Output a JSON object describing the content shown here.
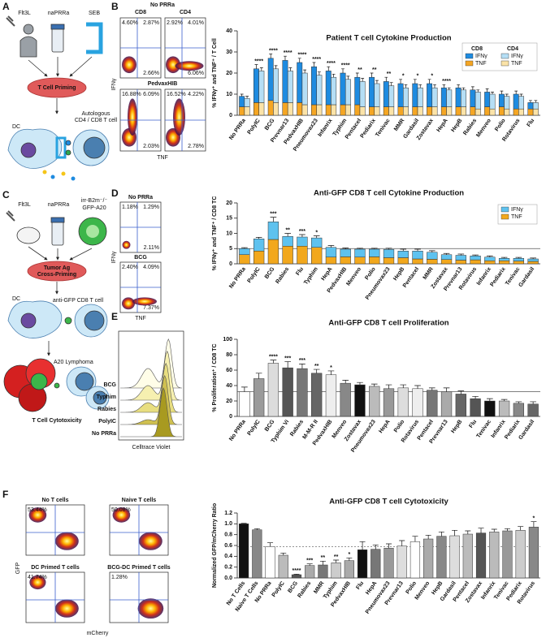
{
  "figure": {
    "panel_labels": [
      "A",
      "B",
      "C",
      "D",
      "E",
      "F"
    ],
    "schematic_a": [
      "Flt3L",
      "naPRRa",
      "SEB",
      "T Cell Priming",
      "Autologous",
      "CD4 / CD8 T cell",
      "DC"
    ],
    "schematic_c": [
      "Flt3L",
      "naPRRa",
      "irr-B2m⁻/⁻",
      "GFP-A20",
      "Tumor Ag",
      "Cross-Priming",
      "DC",
      "anti-GFP CD8 T cell",
      "A20 Lymphoma",
      "T Cell Cytotoxicity"
    ],
    "flow_b": {
      "titles": [
        "No PRRa",
        "PedvaxHIB"
      ],
      "columns": [
        "CD8",
        "CD4"
      ],
      "x_label": "TNF",
      "y_label": "IFNγ",
      "gates": [
        [
          "4.60%",
          "2.87%",
          "2.66%"
        ],
        [
          "2.92%",
          "4.01%",
          "6.06%"
        ],
        [
          "16.88%",
          "6.09%",
          "2.03%"
        ],
        [
          "16.52%",
          "4.22%",
          "2.78%"
        ]
      ]
    },
    "flow_d": {
      "titles": [
        "No PRRa",
        "BCG"
      ],
      "x_label": "TNF",
      "y_label": "IFNγ",
      "gates": [
        [
          "1.18%",
          "1.29%",
          "2.11%"
        ],
        [
          "2.40%",
          "4.09%",
          "7.37%"
        ]
      ]
    },
    "histogram_e": {
      "labels": [
        "BCG",
        "Typhim",
        "Rabies",
        "PolyIC",
        "No PRRa"
      ],
      "x_label": "Celltrace Violet"
    },
    "flow_f": {
      "titles": [
        "No T cells",
        "Naive T cells",
        "DC Primed T cells",
        "BCG-DC Primed T cells"
      ],
      "gates": [
        "53.44%",
        "50.08%",
        "41.74%",
        "1.28%"
      ],
      "x_label": "mCherry",
      "y_label": "GFP"
    }
  },
  "chart_data": [
    {
      "type": "bar",
      "title": "Patient T cell Cytokine Production",
      "y_label": "% IFNγ⁺ and TNF⁺ / T Cell",
      "categories": [
        "No PRRa",
        "PolyIC",
        "BCG",
        "Prevnar13",
        "PedvaxHIB",
        "Pneumovax23",
        "Infanrix",
        "Typhim",
        "Pentacel",
        "Pediarix",
        "Tenivac",
        "MMR",
        "Gardasil",
        "Zostavax",
        "HepA",
        "HepB",
        "Rabies",
        "Menveo",
        "Polio",
        "Rotavirus",
        "Flu"
      ],
      "series": [
        {
          "name": "IFNγ",
          "group": "CD8",
          "color": "#1e8be0",
          "values": [
            5,
            16,
            20,
            20,
            19,
            18,
            16,
            15,
            13,
            14,
            12,
            11,
            11,
            11,
            9,
            9,
            8,
            7,
            6,
            7,
            3
          ],
          "errors": [
            1,
            2,
            2,
            2,
            2,
            2,
            2,
            2,
            2,
            2,
            2,
            2,
            2,
            2,
            1.5,
            1.5,
            1.5,
            1.5,
            1.5,
            1.5,
            1
          ]
        },
        {
          "name": "TNF",
          "group": "CD8",
          "color": "#f5a623",
          "values": [
            4,
            6,
            7,
            6,
            6,
            5,
            5,
            5,
            5,
            4,
            4,
            4,
            4,
            4,
            4,
            4,
            4,
            4,
            4,
            3,
            3
          ]
        },
        {
          "name": "IFNγ",
          "group": "CD4",
          "color": "#b5def5",
          "values": [
            4,
            15,
            16,
            15,
            15,
            14,
            13,
            12,
            12,
            11,
            10,
            9,
            9,
            9,
            8,
            8,
            8,
            7,
            6,
            6,
            3
          ],
          "errors": [
            1,
            1.5,
            1.5,
            1.5,
            1.5,
            1.5,
            1.5,
            1.5,
            1.5,
            1.5,
            1.5,
            1.5,
            1.5,
            1.5,
            1,
            1,
            1,
            1,
            1,
            1,
            1
          ]
        },
        {
          "name": "TNF",
          "group": "CD4",
          "color": "#fbe3a8",
          "values": [
            4,
            6,
            6,
            6,
            5,
            5,
            5,
            5,
            4,
            4,
            4,
            4,
            4,
            4,
            4,
            4,
            3,
            3,
            3,
            3,
            3
          ]
        }
      ],
      "significance": [
        null,
        "****",
        "****",
        "****",
        "****",
        "****",
        "****",
        "****",
        "**",
        "**",
        "**",
        "*",
        "*",
        "*",
        "****",
        null,
        null,
        null,
        null,
        null,
        null
      ],
      "ylim": [
        0,
        40
      ],
      "yticks": [
        0,
        10,
        20,
        30,
        40
      ],
      "legend": "upper right"
    },
    {
      "type": "bar",
      "title": "Anti-GFP CD8 T cell Cytokine Production",
      "y_label": "% IFNγ⁺ and TNF⁺ / CD8 TC",
      "categories": [
        "No PRRa",
        "PolyIC",
        "BCG",
        "Rabies",
        "Flu",
        "Typhim",
        "HepA",
        "PedvaxHIB",
        "Menveo",
        "Polio",
        "Pneumovax23",
        "HepB",
        "Pentacel",
        "MMR",
        "Zostavax",
        "Prevnar13",
        "Rotavirus",
        "Infanrix",
        "Pediarix",
        "Tenivac",
        "Gardasil"
      ],
      "series": [
        {
          "name": "IFNγ",
          "color": "#5ec2ef",
          "values": [
            2,
            4,
            5.8,
            3.2,
            3,
            3.1,
            3.2,
            2.5,
            2.6,
            2.5,
            2.7,
            2.2,
            2.6,
            2.3,
            1.6,
            1.6,
            1.3,
            1.2,
            0.8,
            0.9,
            0.8
          ],
          "errors": [
            0.3,
            0.5,
            1.5,
            1,
            0.8,
            0.7,
            0.6,
            0.4,
            0.3,
            0.3,
            0.4,
            0.6,
            0.6,
            0.5,
            0.4,
            0.4,
            0.3,
            0.4,
            0.3,
            0.3,
            0.3
          ]
        },
        {
          "name": "TNF",
          "color": "#f2a81d",
          "values": [
            3,
            4.2,
            8,
            5.8,
            5.8,
            5.4,
            2.2,
            2.3,
            2.2,
            2.3,
            2,
            2,
            1.6,
            1.5,
            1.4,
            1.2,
            1.3,
            1,
            1,
            0.9,
            0.8
          ]
        }
      ],
      "significance": [
        null,
        null,
        "***",
        "**",
        "***",
        "*",
        null,
        null,
        null,
        null,
        null,
        null,
        null,
        null,
        null,
        null,
        null,
        null,
        null,
        null,
        null
      ],
      "ref_line": 5,
      "ylim": [
        0,
        20
      ],
      "yticks": [
        0,
        5,
        10,
        15,
        20
      ],
      "legend": "upper right"
    },
    {
      "type": "bar",
      "title": "Anti-GFP CD8 T cell Proliferation",
      "y_label": "% Proliferation⁺ / CD8 TC",
      "categories": [
        "No PRRa",
        "PolyIC",
        "BCG",
        "Typhim Vi",
        "Rabies",
        "M-M-R II",
        "PedvaxHIB",
        "Menveo",
        "Zostavax",
        "Pneumovax23",
        "HepA",
        "Polio",
        "Rotavirus",
        "Pentacel",
        "Prevnar13",
        "HepB",
        "Flu",
        "Tenivac",
        "Infanrix",
        "Pediarix",
        "Gardasil"
      ],
      "series": [
        {
          "values": [
            32,
            49,
            69,
            63,
            62,
            56,
            54,
            43,
            41,
            39,
            36,
            37,
            36,
            34,
            32,
            29,
            23,
            20,
            20,
            17,
            16
          ],
          "errors": [
            6,
            7,
            4,
            8,
            6,
            5,
            5,
            4,
            3,
            3,
            5,
            4,
            4,
            3,
            5,
            4,
            3,
            3,
            2,
            2,
            3
          ],
          "colors": [
            "#ffffff",
            "#9a9a9a",
            "#dcdcdc",
            "#555555",
            "#777777",
            "#666666",
            "#eeeeee",
            "#888888",
            "#111111",
            "#bbbbbb",
            "#999999",
            "#dddddd",
            "#eeeeee",
            "#777777",
            "#aaaaaa",
            "#666666",
            "#555555",
            "#111111",
            "#bbbbbb",
            "#888888",
            "#666666"
          ]
        }
      ],
      "significance": [
        null,
        null,
        "****",
        "***",
        "***",
        "**",
        "*",
        null,
        null,
        null,
        null,
        null,
        null,
        null,
        null,
        null,
        null,
        null,
        null,
        null,
        null
      ],
      "ref_line": 32,
      "ylim": [
        0,
        100
      ],
      "yticks": [
        0,
        20,
        40,
        60,
        80,
        100
      ]
    },
    {
      "type": "bar",
      "title": "Anti-GFP CD8 T cell Cytotoxicity",
      "y_label": "Normalized GFP/mCherry Ratio",
      "categories": [
        "No T Cells",
        "Naive T Cells",
        "No PRRa",
        "PolyIC",
        "BCG",
        "Rabies",
        "MMR",
        "Typhim",
        "PedvaxHIB",
        "Flu",
        "HepA",
        "Pneumovax23",
        "Prevnar13",
        "Polio",
        "Menveo",
        "HepB",
        "Gardasil",
        "Pentacel",
        "Zostavax",
        "Infanrix",
        "Tenivac",
        "Pediarix",
        "Rotavirus"
      ],
      "series": [
        {
          "values": [
            1,
            0.89,
            0.58,
            0.42,
            0.06,
            0.23,
            0.24,
            0.28,
            0.32,
            0.52,
            0.53,
            0.55,
            0.59,
            0.67,
            0.72,
            0.77,
            0.78,
            0.81,
            0.83,
            0.85,
            0.87,
            0.88,
            0.94
          ],
          "errors": [
            0.01,
            0.02,
            0.07,
            0.04,
            0.01,
            0.03,
            0.07,
            0.05,
            0.05,
            0.15,
            0.08,
            0.08,
            0.1,
            0.1,
            0.07,
            0.08,
            0.1,
            0.06,
            0.09,
            0.05,
            0.04,
            0.07,
            0.1
          ],
          "colors": [
            "#111111",
            "#888888",
            "#ffffff",
            "#bbbbbb",
            "#555555",
            "#aaaaaa",
            "#777777",
            "#cccccc",
            "#aaaaaa",
            "#111111",
            "#777777",
            "#999999",
            "#dddddd",
            "#ffffff",
            "#aaaaaa",
            "#888888",
            "#dddddd",
            "#bbbbbb",
            "#555555",
            "#bbbbbb",
            "#999999",
            "#cccccc",
            "#888888"
          ]
        }
      ],
      "significance": [
        null,
        null,
        null,
        null,
        "****",
        "***",
        "**",
        "**",
        "*",
        null,
        null,
        null,
        null,
        null,
        null,
        null,
        null,
        null,
        null,
        null,
        null,
        null,
        "*"
      ],
      "ref_line": 0.58,
      "ylim": [
        0,
        1.2
      ],
      "yticks": [
        {
          "value": 0,
          "label": "0.0"
        },
        0.2,
        0.4,
        0.6,
        0.8,
        {
          "value": 1,
          "label": "1.0"
        },
        1.2
      ]
    }
  ]
}
